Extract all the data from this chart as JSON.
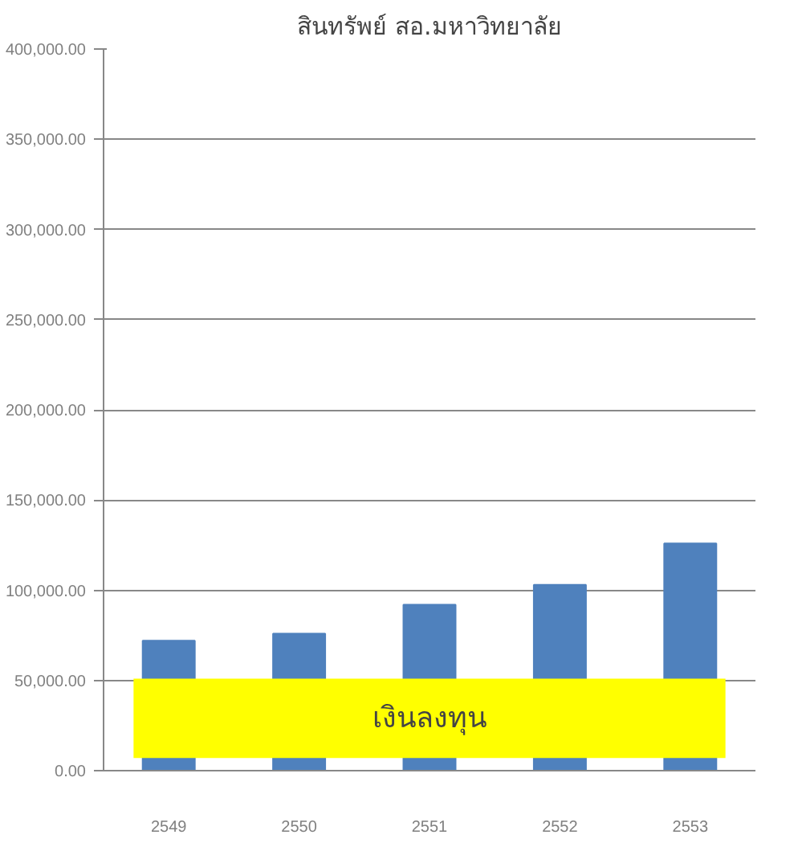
{
  "chart_data": {
    "type": "bar",
    "title": "สินทรัพย์ สอ.มหาวิทยาลัย",
    "categories": [
      "2549",
      "2550",
      "2551",
      "2552",
      "2553"
    ],
    "values": [
      72000,
      76000,
      92000,
      103000,
      126000
    ],
    "color": "#4f81bd",
    "ylim": [
      0,
      400000
    ],
    "yticks": [
      {
        "value": 0,
        "label": "0.00"
      },
      {
        "value": 50000,
        "label": "50,000.00"
      },
      {
        "value": 100000,
        "label": "100,000.00"
      },
      {
        "value": 150000,
        "label": "150,000.00"
      },
      {
        "value": 200000,
        "label": "200,000.00"
      },
      {
        "value": 250000,
        "label": "250,000.00"
      },
      {
        "value": 300000,
        "label": "300,000.00"
      },
      {
        "value": 350000,
        "label": "350,000.00"
      },
      {
        "value": 400000,
        "label": "400,000.00"
      }
    ],
    "grid": "y",
    "bands": [
      {
        "axis": "y",
        "from": 7000,
        "to": 51000,
        "label": "เงินลงทุน",
        "color": "#ffff00"
      }
    ]
  }
}
